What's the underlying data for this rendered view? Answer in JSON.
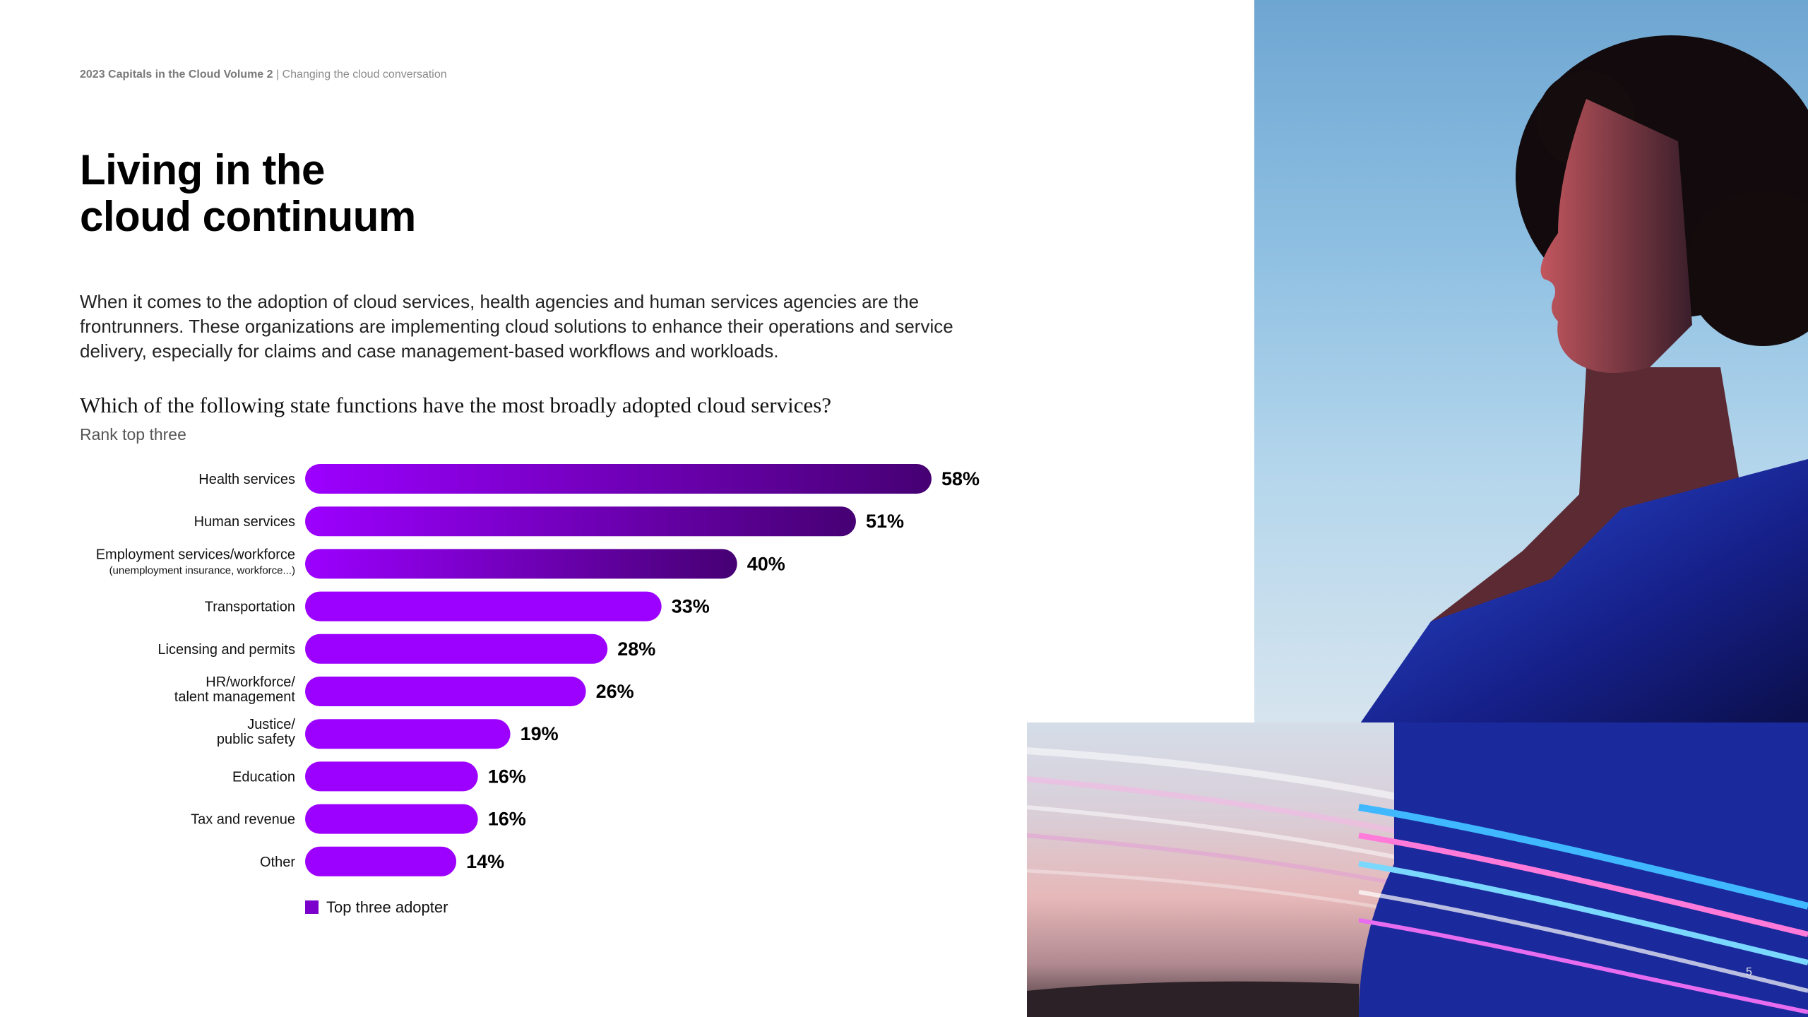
{
  "header": {
    "publication": "2023 Capitals in the Cloud Volume 2",
    "separator": " | ",
    "section": "Changing the cloud conversation"
  },
  "title": {
    "line1": "Living in the",
    "line2": "cloud continuum"
  },
  "intro": "When it comes to the adoption of cloud services, health agencies and human services agencies are the frontrunners. These organizations are implementing cloud solutions to enhance their operations and service delivery, especially for claims and case management-based workflows and workloads.",
  "question": "Which of the following state functions have the most broadly adopted cloud services?",
  "subquestion": "Rank top three",
  "page_number": "5",
  "colors": {
    "bar_light": "#9c00ff",
    "bar_dark": "#460073",
    "legend_swatch": "#7b00cc"
  },
  "chart_data": {
    "type": "bar",
    "orientation": "horizontal",
    "categories": [
      [
        "Health services"
      ],
      [
        "Human services"
      ],
      [
        "Employment services/workforce",
        "(unemployment insurance, workforce...)"
      ],
      [
        "Transportation"
      ],
      [
        "Licensing and permits"
      ],
      [
        "HR/workforce/",
        "talent management"
      ],
      [
        "Justice/",
        "public safety"
      ],
      [
        "Education"
      ],
      [
        "Tax and revenue"
      ],
      [
        "Other"
      ]
    ],
    "values": [
      58,
      51,
      40,
      33,
      28,
      26,
      19,
      16,
      16,
      14
    ],
    "value_labels": [
      "58%",
      "51%",
      "40%",
      "33%",
      "28%",
      "26%",
      "19%",
      "16%",
      "16%",
      "14%"
    ],
    "highlight_top": 3,
    "unit": "%",
    "legend": [
      "Top three adopter"
    ],
    "legend_position": "bottom-left",
    "title": "",
    "xlabel": "",
    "ylabel": "",
    "xlim": [
      0,
      60
    ],
    "grid": false
  }
}
